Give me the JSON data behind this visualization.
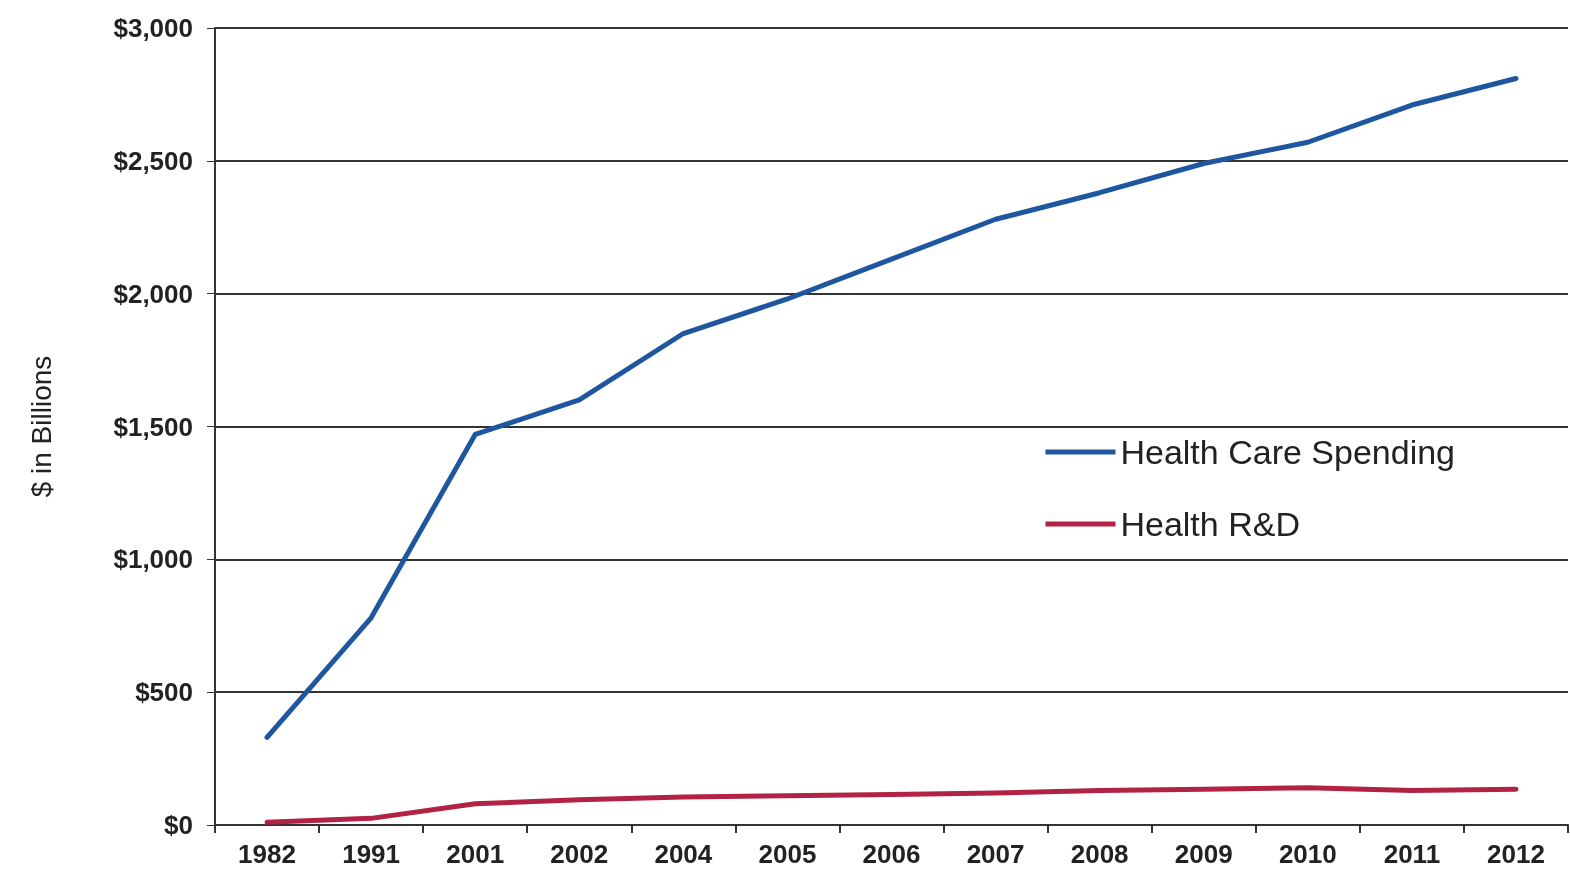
{
  "chart_data": {
    "type": "line",
    "ylabel": "$ in Billions",
    "categories": [
      "1982",
      "1991",
      "2001",
      "2002",
      "2004",
      "2005",
      "2006",
      "2007",
      "2008",
      "2009",
      "2010",
      "2011",
      "2012"
    ],
    "series": [
      {
        "name": "Health Care Spending",
        "color": "#1f56a0",
        "values": [
          330,
          780,
          1470,
          1600,
          1850,
          1980,
          2130,
          2280,
          2380,
          2490,
          2570,
          2710,
          2810
        ]
      },
      {
        "name": "Health R&D",
        "color": "#b22244",
        "values": [
          10,
          25,
          80,
          95,
          105,
          110,
          115,
          120,
          130,
          135,
          140,
          130,
          135
        ]
      }
    ],
    "ylim": [
      0,
      3000
    ],
    "yticks": [
      {
        "value": 0,
        "label": "$0"
      },
      {
        "value": 500,
        "label": "$500"
      },
      {
        "value": 1000,
        "label": "$1,000"
      },
      {
        "value": 1500,
        "label": "$1,500"
      },
      {
        "value": 2000,
        "label": "$2,000"
      },
      {
        "value": 2500,
        "label": "$2,500"
      },
      {
        "value": 3000,
        "label": "$3,000"
      }
    ],
    "grid": "y",
    "legend": "right",
    "marker": "none",
    "line_style": "solid"
  }
}
